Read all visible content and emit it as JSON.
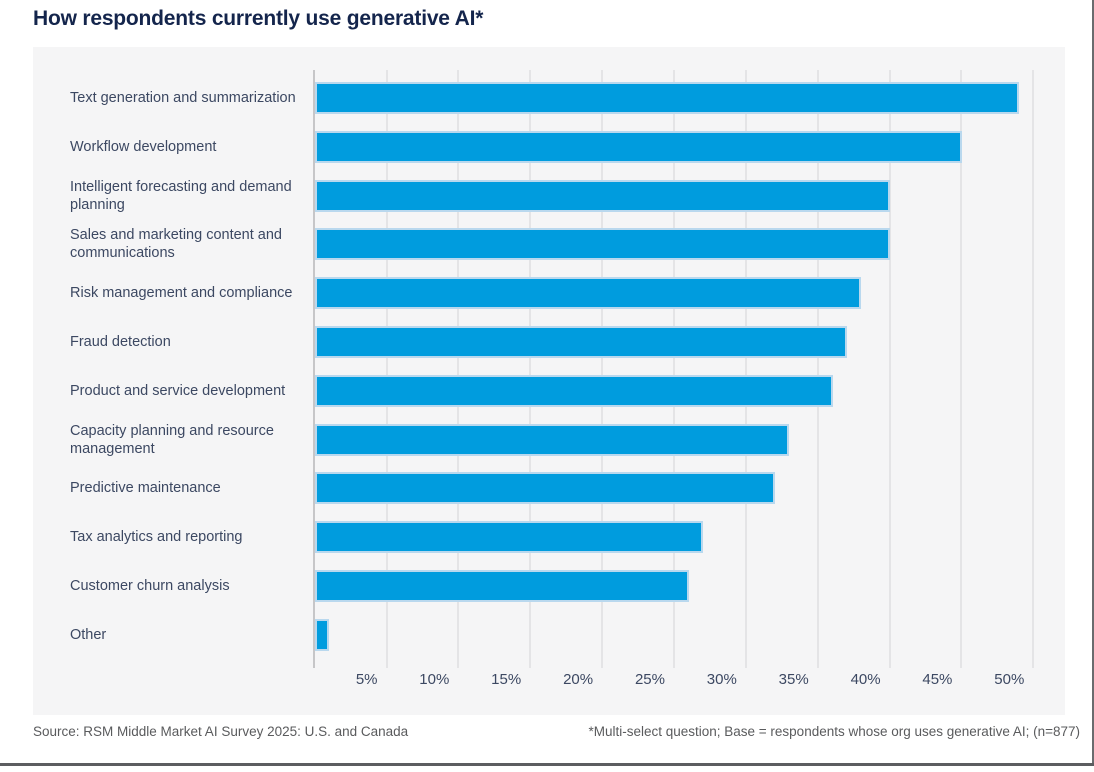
{
  "page": {
    "title": "How respondents currently use generative AI*"
  },
  "footer": {
    "source": "Source: RSM Middle Market AI Survey 2025: U.S. and Canada",
    "footnote": "*Multi-select question; Base = respondents whose org uses generative AI; (n=877)"
  },
  "colors": {
    "bar_fill": "#009cde",
    "bar_stroke": "#b9d8ee",
    "title_text": "#14254c",
    "label_text": "#3c4862",
    "panel_background": "#f5f5f6",
    "gridline": "#e4e4e6",
    "axis_line": "#c6c6c8",
    "footer_text": "#5a5b5d",
    "frame_border": "#6a6b6e"
  },
  "chart_data": {
    "type": "bar",
    "orientation": "horizontal",
    "title": "How respondents currently use generative AI*",
    "categories": [
      "Text generation and summarization",
      "Workflow development",
      "Intelligent forecasting and demand planning",
      "Sales and marketing content and communications",
      "Risk management and compliance",
      "Fraud detection",
      "Product and service development",
      "Capacity planning and resource management",
      "Predictive maintenance",
      "Tax analytics and reporting",
      "Customer churn analysis",
      "Other"
    ],
    "values": [
      49,
      45,
      40,
      40,
      38,
      37,
      36,
      33,
      32,
      27,
      26,
      1
    ],
    "unit": "%",
    "xlabel": "",
    "ylabel": "",
    "x_tick_values": [
      5,
      10,
      15,
      20,
      25,
      30,
      35,
      40,
      45,
      50
    ],
    "x_tick_labels": [
      "5%",
      "10%",
      "15%",
      "20%",
      "25%",
      "30%",
      "35%",
      "40%",
      "45%",
      "50%"
    ],
    "xlim": [
      0,
      52.2
    ],
    "grid": "vertical-only",
    "legend": "none"
  }
}
